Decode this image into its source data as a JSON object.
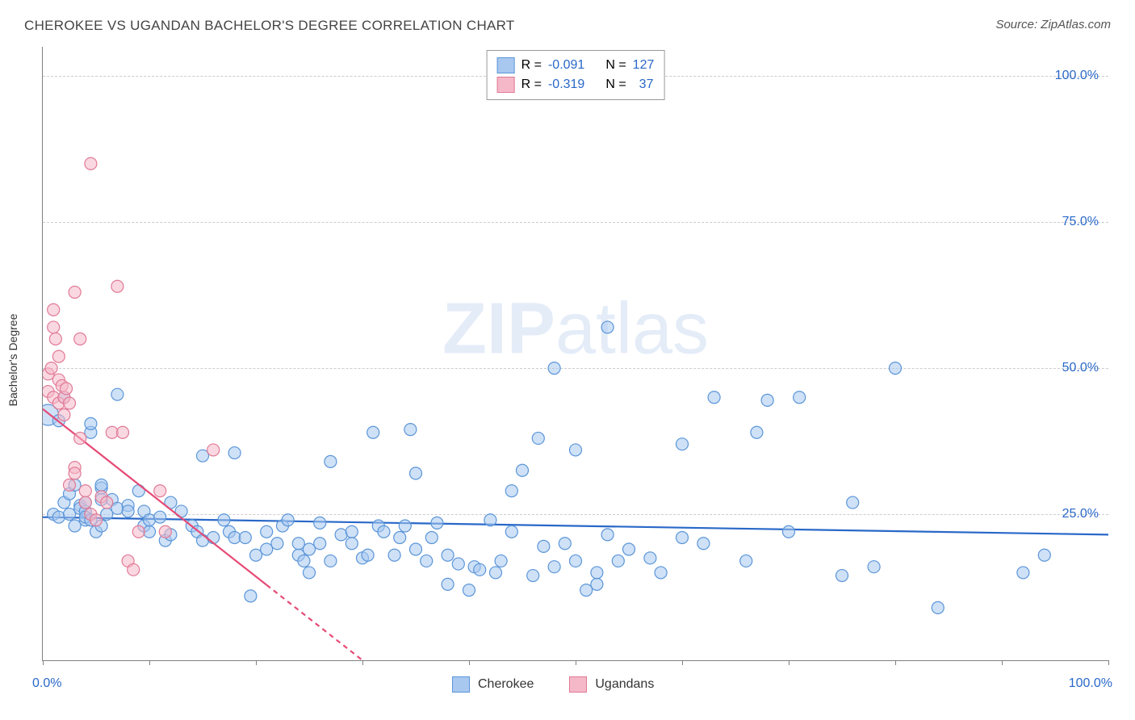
{
  "title": "CHEROKEE VS UGANDAN BACHELOR'S DEGREE CORRELATION CHART",
  "source": "Source: ZipAtlas.com",
  "watermark_bold": "ZIP",
  "watermark_light": "atlas",
  "yaxis_title": "Bachelor's Degree",
  "chart": {
    "type": "scatter",
    "xlim": [
      0,
      100
    ],
    "ylim": [
      0,
      105
    ],
    "yticks": [
      25,
      50,
      75,
      100
    ],
    "ytick_labels": [
      "25.0%",
      "50.0%",
      "75.0%",
      "100.0%"
    ],
    "xticks": [
      0,
      10,
      20,
      30,
      40,
      50,
      60,
      70,
      80,
      90,
      100
    ],
    "xaxis_min_label": "0.0%",
    "xaxis_max_label": "100.0%",
    "grid_color": "#cccccc",
    "axis_color": "#808080",
    "background_color": "#ffffff",
    "marker_radius": 7.5,
    "marker_radius_large": 13,
    "marker_stroke_width": 1.2,
    "series": [
      {
        "name": "Cherokee",
        "fill": "#a8c8f0",
        "fill_opacity": 0.55,
        "stroke": "#5a95d8",
        "R": "-0.091",
        "N": "127",
        "trend": {
          "x1": 0,
          "y1": 24.5,
          "x2": 100,
          "y2": 21.5,
          "color": "#2968c8",
          "width": 2.2
        },
        "points": [
          [
            0.5,
            42,
            13
          ],
          [
            1,
            25
          ],
          [
            1.5,
            24.5
          ],
          [
            1.5,
            41
          ],
          [
            2,
            45
          ],
          [
            2,
            27
          ],
          [
            2.5,
            28.5
          ],
          [
            2.5,
            25
          ],
          [
            3,
            23
          ],
          [
            3,
            30
          ],
          [
            3.5,
            26.5
          ],
          [
            3.5,
            26
          ],
          [
            4,
            24
          ],
          [
            4,
            25.5
          ],
          [
            4,
            24.5
          ],
          [
            4,
            27
          ],
          [
            4.5,
            39
          ],
          [
            4.5,
            40.5
          ],
          [
            4.5,
            24
          ],
          [
            5,
            22
          ],
          [
            5.5,
            23
          ],
          [
            5.5,
            27.5
          ],
          [
            5.5,
            29.5
          ],
          [
            5.5,
            30
          ],
          [
            6,
            25
          ],
          [
            6.5,
            27.5
          ],
          [
            7,
            26
          ],
          [
            7,
            45.5
          ],
          [
            8,
            26.5
          ],
          [
            8,
            25.5
          ],
          [
            9,
            29
          ],
          [
            9.5,
            25.5
          ],
          [
            9.5,
            23
          ],
          [
            10,
            22
          ],
          [
            10,
            24
          ],
          [
            11,
            24.5
          ],
          [
            11.5,
            20.5
          ],
          [
            12,
            21.5
          ],
          [
            12,
            27
          ],
          [
            13,
            25.5
          ],
          [
            14,
            23
          ],
          [
            14.5,
            22
          ],
          [
            15,
            20.5
          ],
          [
            15,
            35
          ],
          [
            16,
            21
          ],
          [
            17,
            24
          ],
          [
            17.5,
            22
          ],
          [
            18,
            21
          ],
          [
            18,
            35.5
          ],
          [
            19,
            21
          ],
          [
            19.5,
            11
          ],
          [
            20,
            18
          ],
          [
            21,
            22
          ],
          [
            21,
            19
          ],
          [
            22,
            20
          ],
          [
            22.5,
            23
          ],
          [
            23,
            24
          ],
          [
            24,
            18
          ],
          [
            24,
            20
          ],
          [
            24.5,
            17
          ],
          [
            25,
            15
          ],
          [
            25,
            19
          ],
          [
            26,
            20
          ],
          [
            26,
            23.5
          ],
          [
            27,
            17
          ],
          [
            27,
            34
          ],
          [
            28,
            21.5
          ],
          [
            29,
            20
          ],
          [
            29,
            22
          ],
          [
            30,
            17.5
          ],
          [
            30.5,
            18
          ],
          [
            31,
            39
          ],
          [
            31.5,
            23
          ],
          [
            32,
            22
          ],
          [
            33,
            18
          ],
          [
            33.5,
            21
          ],
          [
            34,
            23
          ],
          [
            34.5,
            39.5
          ],
          [
            35,
            19
          ],
          [
            35,
            32
          ],
          [
            36,
            17
          ],
          [
            36.5,
            21
          ],
          [
            37,
            23.5
          ],
          [
            38,
            18
          ],
          [
            38,
            13
          ],
          [
            39,
            16.5
          ],
          [
            40,
            12
          ],
          [
            40.5,
            16
          ],
          [
            41,
            15.5
          ],
          [
            42,
            24
          ],
          [
            42.5,
            15
          ],
          [
            43,
            17
          ],
          [
            44,
            22
          ],
          [
            44,
            29
          ],
          [
            45,
            32.5
          ],
          [
            46,
            14.5
          ],
          [
            46.5,
            38
          ],
          [
            47,
            19.5
          ],
          [
            48,
            16
          ],
          [
            48,
            50
          ],
          [
            49,
            20
          ],
          [
            50,
            17
          ],
          [
            50,
            36
          ],
          [
            51,
            12
          ],
          [
            52,
            13
          ],
          [
            52,
            15
          ],
          [
            53,
            21.5
          ],
          [
            53,
            57
          ],
          [
            54,
            17
          ],
          [
            55,
            19
          ],
          [
            57,
            17.5
          ],
          [
            58,
            15
          ],
          [
            60,
            37
          ],
          [
            60,
            21
          ],
          [
            62,
            20
          ],
          [
            63,
            45
          ],
          [
            66,
            17
          ],
          [
            67,
            39
          ],
          [
            68,
            44.5
          ],
          [
            70,
            22
          ],
          [
            71,
            45
          ],
          [
            75,
            14.5
          ],
          [
            76,
            27
          ],
          [
            78,
            16
          ],
          [
            80,
            50
          ],
          [
            84,
            9
          ],
          [
            92,
            15
          ],
          [
            94,
            18
          ]
        ]
      },
      {
        "name": "Ugandans",
        "fill": "#f5b8c8",
        "fill_opacity": 0.55,
        "stroke": "#e07a95",
        "R": "-0.319",
        "N": "37",
        "trend": {
          "x1": 0,
          "y1": 43,
          "x2": 30,
          "y2": 0,
          "color": "#e64a75",
          "width": 2.2,
          "dash_after_x": 21
        },
        "points": [
          [
            0.5,
            46
          ],
          [
            0.5,
            49
          ],
          [
            0.8,
            50
          ],
          [
            1,
            57
          ],
          [
            1,
            60
          ],
          [
            1,
            45
          ],
          [
            1.2,
            55
          ],
          [
            1.5,
            48
          ],
          [
            1.5,
            52
          ],
          [
            1.5,
            44
          ],
          [
            1.8,
            47
          ],
          [
            2,
            42
          ],
          [
            2,
            45
          ],
          [
            2.2,
            46.5
          ],
          [
            2.5,
            44
          ],
          [
            2.5,
            30
          ],
          [
            3,
            63
          ],
          [
            3,
            33
          ],
          [
            3,
            32
          ],
          [
            3.5,
            55
          ],
          [
            3.5,
            38
          ],
          [
            4,
            29
          ],
          [
            4,
            27
          ],
          [
            4.5,
            85
          ],
          [
            4.5,
            25
          ],
          [
            5,
            24
          ],
          [
            5.5,
            28
          ],
          [
            6,
            27
          ],
          [
            6.5,
            39
          ],
          [
            7,
            64
          ],
          [
            7.5,
            39
          ],
          [
            8,
            17
          ],
          [
            8.5,
            15.5
          ],
          [
            9,
            22
          ],
          [
            11,
            29
          ],
          [
            11.5,
            22
          ],
          [
            16,
            36
          ]
        ]
      }
    ],
    "legend_top": {
      "rows": [
        {
          "swatch_fill": "#a8c8f0",
          "swatch_stroke": "#5a95d8",
          "R_label": "R =",
          "R_val": "-0.091",
          "N_label": "N =",
          "N_val": "127"
        },
        {
          "swatch_fill": "#f5b8c8",
          "swatch_stroke": "#e07a95",
          "R_label": "R =",
          "R_val": "-0.319",
          "N_label": "N =",
          "N_val": "37"
        }
      ]
    },
    "legend_bottom": {
      "items": [
        {
          "swatch_fill": "#a8c8f0",
          "swatch_stroke": "#5a95d8",
          "label": "Cherokee"
        },
        {
          "swatch_fill": "#f5b8c8",
          "swatch_stroke": "#e07a95",
          "label": "Ugandans"
        }
      ]
    }
  }
}
